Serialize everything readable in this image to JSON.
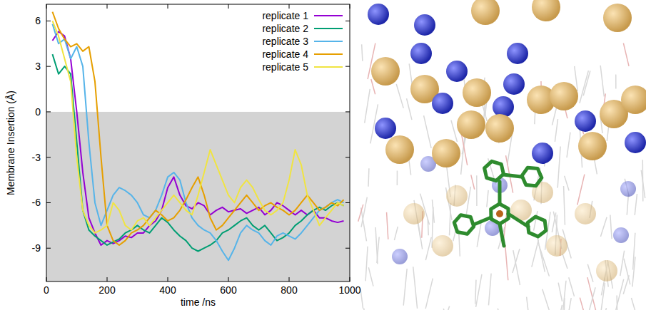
{
  "chart_data": {
    "type": "line",
    "x_label": "time /ns",
    "y_label": "Membrane Insertion (Å)",
    "xlim": [
      0,
      1000
    ],
    "xticks": [
      0,
      200,
      400,
      600,
      800,
      1000
    ],
    "ylim": [
      -11.2,
      7.1
    ],
    "yticks": [
      -9,
      -6,
      -3,
      0,
      3,
      6
    ],
    "shaded_range": [
      -11.2,
      0
    ],
    "legend": "upper right",
    "grid": false,
    "x": [
      20,
      40,
      60,
      80,
      100,
      120,
      140,
      160,
      180,
      200,
      220,
      240,
      260,
      280,
      300,
      320,
      340,
      360,
      380,
      400,
      420,
      440,
      460,
      480,
      500,
      520,
      540,
      560,
      580,
      600,
      620,
      640,
      660,
      680,
      700,
      720,
      740,
      760,
      780,
      800,
      820,
      840,
      860,
      880,
      900,
      920,
      940,
      960,
      980
    ],
    "series": [
      {
        "name": "replicate 1",
        "color": "#9400d3",
        "values": [
          4.7,
          5.3,
          5.0,
          3.5,
          0.0,
          -4.0,
          -7.0,
          -8.0,
          -8.8,
          -8.5,
          -8.7,
          -8.5,
          -8.2,
          -8.3,
          -8.0,
          -8.0,
          -7.5,
          -7.2,
          -6.5,
          -5.0,
          -4.3,
          -5.5,
          -6.2,
          -6.4,
          -6.0,
          -6.2,
          -6.8,
          -6.5,
          -6.3,
          -6.6,
          -6.5,
          -6.4,
          -6.7,
          -6.5,
          -6.3,
          -6.8,
          -6.5,
          -6.0,
          -6.2,
          -6.5,
          -6.8,
          -6.5,
          -6.8,
          -6.5,
          -7.0,
          -7.0,
          -7.2,
          -7.3,
          -7.2
        ]
      },
      {
        "name": "replicate 2",
        "color": "#009e73",
        "values": [
          3.8,
          2.5,
          3.0,
          2.5,
          -2.0,
          -6.5,
          -7.8,
          -8.2,
          -8.5,
          -8.8,
          -8.6,
          -8.4,
          -8.0,
          -7.8,
          -7.5,
          -7.8,
          -8.0,
          -7.5,
          -7.0,
          -7.3,
          -7.8,
          -8.2,
          -8.5,
          -9.0,
          -9.2,
          -9.0,
          -8.8,
          -8.5,
          -8.0,
          -7.8,
          -7.5,
          -7.2,
          -7.0,
          -7.5,
          -7.8,
          -7.5,
          -8.0,
          -8.5,
          -8.3,
          -8.0,
          -7.5,
          -7.2,
          -6.8,
          -6.5,
          -6.3,
          -6.5,
          -6.2,
          -6.0,
          -6.2
        ]
      },
      {
        "name": "replicate 3",
        "color": "#56b4e9",
        "values": [
          5.8,
          4.5,
          4.8,
          3.5,
          4.3,
          3.0,
          -2.0,
          -6.0,
          -7.5,
          -6.5,
          -5.5,
          -5.0,
          -5.2,
          -5.5,
          -6.0,
          -6.8,
          -7.0,
          -6.5,
          -5.5,
          -4.3,
          -4.0,
          -4.5,
          -6.0,
          -7.0,
          -7.5,
          -7.8,
          -8.0,
          -8.5,
          -9.2,
          -9.8,
          -9.0,
          -8.0,
          -7.5,
          -7.8,
          -8.0,
          -8.5,
          -8.8,
          -8.2,
          -8.0,
          -8.2,
          -8.4,
          -8.0,
          -7.5,
          -7.0,
          -6.5,
          -6.3,
          -6.0,
          -5.8,
          -6.0
        ]
      },
      {
        "name": "replicate 4",
        "color": "#e69f00",
        "values": [
          6.6,
          5.5,
          4.8,
          4.3,
          4.5,
          4.0,
          4.3,
          2.0,
          -3.0,
          -7.5,
          -8.5,
          -8.8,
          -8.5,
          -8.0,
          -7.8,
          -7.5,
          -7.0,
          -6.5,
          -6.8,
          -7.2,
          -7.0,
          -6.5,
          -5.8,
          -5.0,
          -4.3,
          -5.5,
          -7.0,
          -7.8,
          -7.5,
          -7.0,
          -6.5,
          -6.0,
          -5.5,
          -6.0,
          -6.5,
          -6.2,
          -6.0,
          -6.3,
          -6.5,
          -6.8,
          -6.5,
          -6.0,
          -5.5,
          -6.0,
          -6.5,
          -6.3,
          -6.0,
          -6.2,
          -5.8
        ]
      },
      {
        "name": "replicate 5",
        "color": "#f0e442",
        "values": [
          6.0,
          5.0,
          3.5,
          2.0,
          -3.0,
          -6.5,
          -7.5,
          -8.0,
          -7.8,
          -7.5,
          -6.0,
          -6.5,
          -7.5,
          -7.8,
          -7.2,
          -7.0,
          -7.5,
          -7.0,
          -6.5,
          -6.0,
          -5.5,
          -6.0,
          -6.5,
          -6.8,
          -5.5,
          -4.0,
          -2.5,
          -3.5,
          -4.5,
          -5.5,
          -6.0,
          -5.0,
          -4.5,
          -5.0,
          -5.8,
          -6.5,
          -6.8,
          -6.5,
          -6.0,
          -4.5,
          -2.5,
          -3.5,
          -5.5,
          -6.5,
          -7.5,
          -7.0,
          -6.5,
          -6.0,
          -6.2
        ]
      }
    ]
  }
}
